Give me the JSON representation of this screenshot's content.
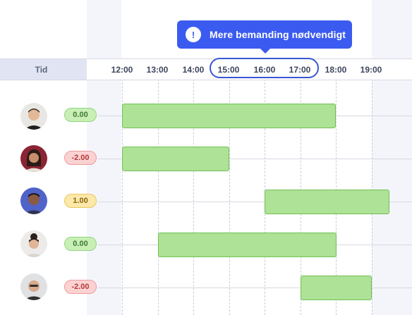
{
  "tooltip": {
    "icon": "exclamation-icon",
    "text": "Mere bemanding nødvendigt"
  },
  "header": {
    "label": "Tid",
    "times": [
      "12:00",
      "13:00",
      "14:00",
      "15:00",
      "16:00",
      "17:00",
      "18:00",
      "19:00"
    ],
    "highlighted_range": [
      "15:00",
      "17:00"
    ]
  },
  "rows": [
    {
      "avatar": "person-avatar",
      "balance": "0.00",
      "shift": {
        "start": "12:00",
        "end": "18:00"
      }
    },
    {
      "avatar": "person-avatar",
      "balance": "-2.00",
      "shift": {
        "start": "12:00",
        "end": "15:00"
      }
    },
    {
      "avatar": "person-avatar",
      "balance": "1.00",
      "shift": {
        "start": "16:00",
        "end": "19:30"
      }
    },
    {
      "avatar": "person-avatar",
      "balance": "0.00",
      "shift": {
        "start": "13:00",
        "end": "18:00"
      }
    },
    {
      "avatar": "person-avatar",
      "balance": "-2.00",
      "shift": {
        "start": "17:00",
        "end": "19:00"
      }
    }
  ],
  "colors": {
    "accent": "#3b5bf0",
    "shift_fill": "#aee296",
    "balance_zero": "#c9efb6",
    "balance_negative": "#fbd2d2",
    "balance_positive": "#fce8a8"
  }
}
